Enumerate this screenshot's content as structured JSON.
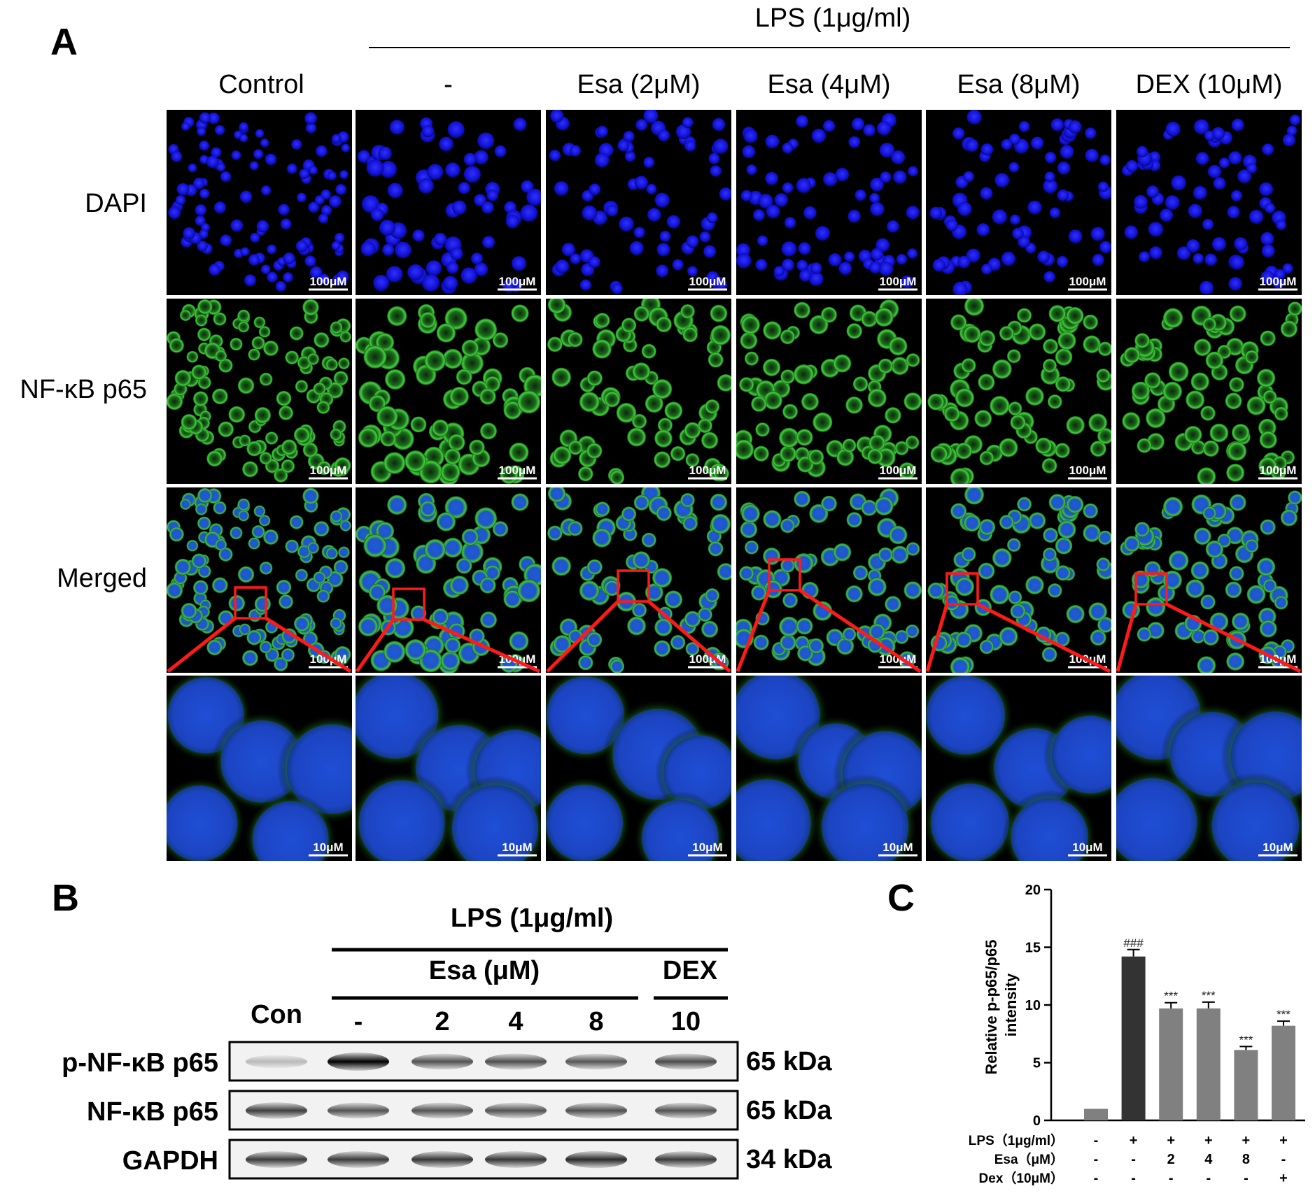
{
  "panel_a": {
    "letter": "A",
    "lps_label": "LPS (1μg/ml)",
    "columns": [
      "Control",
      "-",
      "Esa (2μM)",
      "Esa (4μM)",
      "Esa (8μM)",
      "DEX (10μM)"
    ],
    "rows": [
      "DAPI",
      "NF-κB p65",
      "Merged",
      ""
    ],
    "scale_bar": "100μM",
    "zoom_scale_bar": "10μM",
    "colors": {
      "dapi": "#1a1aff",
      "p65": "#33c230",
      "box": "#ff1a1a",
      "background": "#000000"
    }
  },
  "panel_b": {
    "letter": "B",
    "lps_label": "LPS (1μg/ml)",
    "esa_label": "Esa (μM)",
    "dex_label": "DEX",
    "lanes": [
      "Con",
      "-",
      "2",
      "4",
      "8",
      "10"
    ],
    "blots": [
      {
        "name": "p-NF-κB p65",
        "size": "65 kDa",
        "intensity": [
          0.1,
          1.0,
          0.6,
          0.62,
          0.58,
          0.64
        ]
      },
      {
        "name": "NF-κB p65",
        "size": "65 kDa",
        "intensity": [
          0.7,
          0.6,
          0.6,
          0.6,
          0.62,
          0.6
        ]
      },
      {
        "name": "GAPDH",
        "size": "34 kDa",
        "intensity": [
          0.72,
          0.72,
          0.74,
          0.74,
          0.8,
          0.72
        ]
      }
    ]
  },
  "panel_c": {
    "letter": "C",
    "chart_data": {
      "type": "bar",
      "ylabel": "Relative p-p65/p65 intensity",
      "ylim": [
        0,
        20
      ],
      "yticks": [
        0,
        5,
        10,
        15,
        20
      ],
      "values": [
        1.0,
        14.2,
        9.7,
        9.7,
        6.1,
        8.2
      ],
      "errors": [
        0,
        0.6,
        0.5,
        0.55,
        0.3,
        0.4
      ],
      "annotations": [
        "",
        "###",
        "***",
        "***",
        "***",
        "***"
      ],
      "colors": [
        "#808080",
        "#333333",
        "#808080",
        "#808080",
        "#808080",
        "#808080"
      ],
      "condition_labels": [
        "LPS（1μg/ml）",
        "Esa（μM）",
        "Dex（10μM）"
      ],
      "conditions": [
        [
          "-",
          "+",
          "+",
          "+",
          "+",
          "+"
        ],
        [
          "-",
          "-",
          "2",
          "4",
          "8",
          "-"
        ],
        [
          "-",
          "-",
          "-",
          "-",
          "-",
          "+"
        ]
      ]
    }
  }
}
